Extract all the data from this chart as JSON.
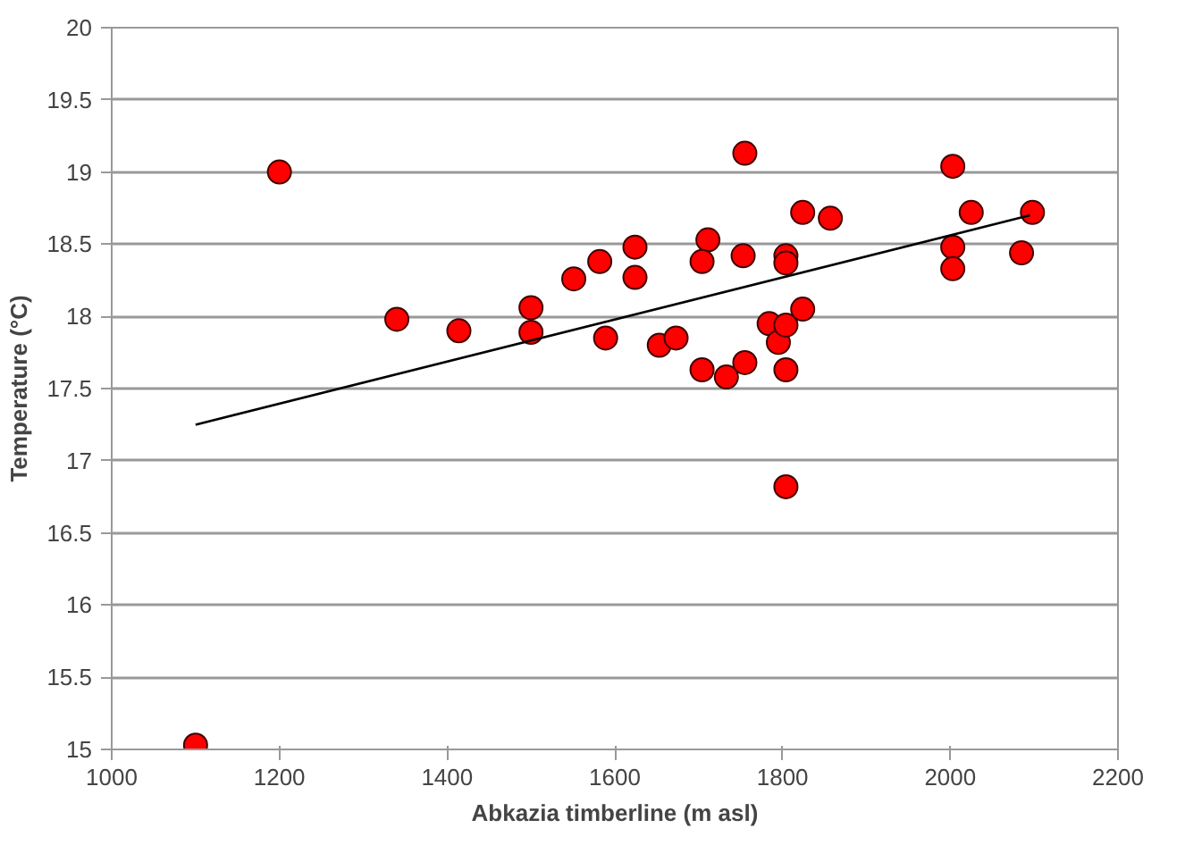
{
  "chart_data": {
    "type": "scatter",
    "xlabel": "Abkazia timberline (m asl)",
    "ylabel": "Temperature (°C)",
    "xlim": [
      1000,
      2200
    ],
    "xticks": [
      1000,
      1200,
      1400,
      1600,
      1800,
      2000,
      2200
    ],
    "ylim": [
      15,
      20
    ],
    "yticks": [
      15,
      15.5,
      16,
      16.5,
      17,
      17.5,
      18,
      18.5,
      19,
      19.5,
      20
    ],
    "grid": "y",
    "series": [
      {
        "color": "#ff0000",
        "marker": "circle",
        "x": [
          1100,
          1200,
          1340,
          1414,
          1500,
          1500,
          1551,
          1582,
          1589,
          1624,
          1624,
          1653,
          1673,
          1711,
          1704,
          1704,
          1733,
          1753,
          1755,
          1755,
          1784,
          1795,
          1804,
          1804,
          1804,
          1804,
          1804,
          1824,
          1824,
          1857,
          2003,
          2003,
          2003,
          2025,
          2085,
          2098
        ],
        "values": [
          15.03,
          19.0,
          17.98,
          17.9,
          18.06,
          17.89,
          18.26,
          18.38,
          17.85,
          18.48,
          18.27,
          17.8,
          17.85,
          18.53,
          18.38,
          17.63,
          17.58,
          18.42,
          19.13,
          17.68,
          17.95,
          17.82,
          17.94,
          18.42,
          18.37,
          17.63,
          16.82,
          18.05,
          18.72,
          18.68,
          19.04,
          18.48,
          18.33,
          18.72,
          18.44,
          18.72
        ]
      },
      {
        "type": "line",
        "color": "#000000",
        "marker": "none",
        "x": [
          1100,
          2095
        ],
        "values": [
          17.25,
          18.7
        ]
      }
    ]
  }
}
